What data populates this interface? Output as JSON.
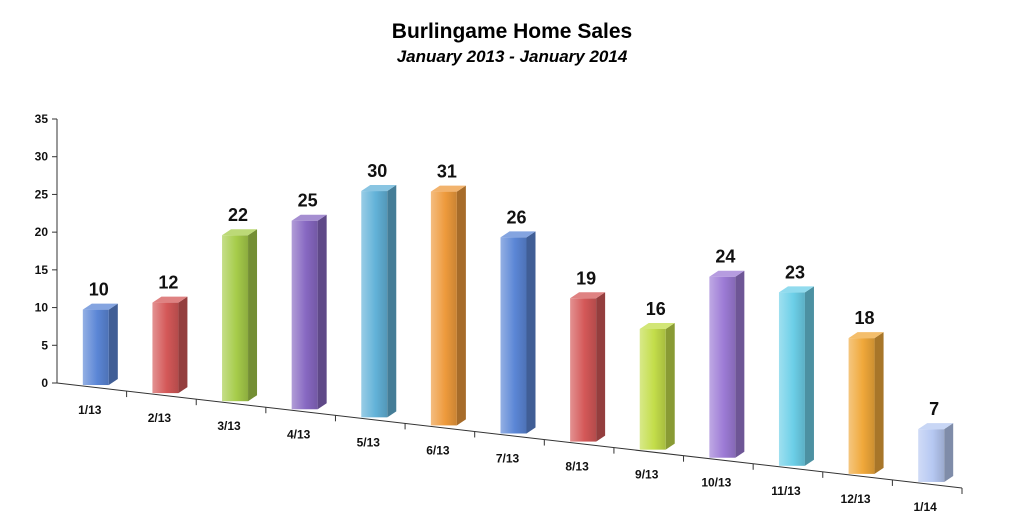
{
  "chart_data": {
    "type": "bar",
    "title": "Burlingame Home Sales",
    "subtitle": "January 2013 - January 2014",
    "xlabel": "",
    "ylabel": "",
    "ylim": [
      0,
      35
    ],
    "yticks": [
      0,
      5,
      10,
      15,
      20,
      25,
      30,
      35
    ],
    "categories": [
      "1/13",
      "2/13",
      "3/13",
      "4/13",
      "5/13",
      "6/13",
      "7/13",
      "8/13",
      "9/13",
      "10/13",
      "11/13",
      "12/13",
      "1/14"
    ],
    "values": [
      10,
      12,
      22,
      25,
      30,
      31,
      26,
      19,
      16,
      24,
      23,
      18,
      7
    ],
    "data_labels": [
      "10",
      "12",
      "22",
      "25",
      "30",
      "31",
      "26",
      "19",
      "16",
      "24",
      "23",
      "18",
      "7"
    ],
    "colors": [
      "#5b86d6",
      "#d45858",
      "#a6cc4a",
      "#8768c2",
      "#62b2d8",
      "#ee9a3c",
      "#5b86d6",
      "#d45858",
      "#c3dd4a",
      "#9d7bd6",
      "#6ccfe8",
      "#f0a83a",
      "#b6c8f2"
    ],
    "grid": false,
    "legend": "none",
    "style": "3d-perspective"
  }
}
